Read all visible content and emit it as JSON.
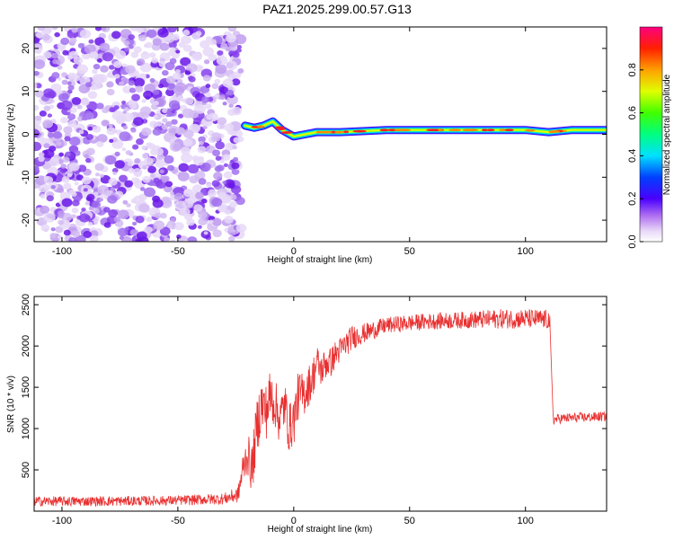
{
  "title": "PAZ1.2025.299.00.57.G13",
  "colors": {
    "snr_line": "#e83030",
    "axes": "#000000",
    "noise_light": "#d8c2f2",
    "noise_dark": "#7a1ee6"
  },
  "chart_data": [
    {
      "type": "heatmap",
      "xlabel": "Height of straight line (km)",
      "ylabel": "Frequency (Hz)",
      "xlim": [
        -112,
        135
      ],
      "ylim": [
        -25,
        25
      ],
      "x_ticks": [
        -100,
        -50,
        0,
        50,
        100
      ],
      "x_tick_labels": [
        "-100",
        "-50",
        "0",
        "50",
        "100"
      ],
      "y_ticks": [
        -20,
        -10,
        0,
        10,
        20
      ],
      "y_tick_labels": [
        "-20",
        "-10",
        "0",
        "10",
        "20"
      ],
      "noise_region_x": [
        -112,
        -21
      ],
      "signal_track": {
        "x": [
          -21,
          -17,
          -13,
          -9,
          -5,
          0,
          5,
          10,
          20,
          40,
          60,
          80,
          100,
          110,
          120,
          135
        ],
        "freq": [
          2,
          1.5,
          2,
          3,
          1,
          -0.5,
          0,
          0.5,
          0.5,
          1,
          1,
          1,
          1,
          0.5,
          1,
          1
        ]
      },
      "colorbar": {
        "label": "Normalized spectral amplitude",
        "range": [
          0,
          1
        ],
        "ticks": [
          0.0,
          0.2,
          0.4,
          0.6,
          0.8
        ],
        "tick_labels": [
          "0.0",
          "0.2",
          "0.4",
          "0.6",
          "0.8"
        ]
      }
    },
    {
      "type": "line",
      "xlabel": "Height of straight line (km)",
      "ylabel": "SNR (10 * v/v)",
      "xlim": [
        -112,
        135
      ],
      "ylim": [
        0,
        2600
      ],
      "x_ticks": [
        -100,
        -50,
        0,
        50,
        100
      ],
      "x_tick_labels": [
        "-100",
        "-50",
        "0",
        "50",
        "100"
      ],
      "y_ticks": [
        500,
        1000,
        1500,
        2000,
        2500
      ],
      "y_tick_labels": [
        "500",
        "1000",
        "1500",
        "2000",
        "2500"
      ],
      "series": [
        {
          "name": "SNR",
          "x": [
            -112,
            -80,
            -50,
            -30,
            -24,
            -22,
            -20,
            -18,
            -16,
            -14,
            -12,
            -10,
            -8,
            -6,
            -4,
            -2,
            0,
            2,
            4,
            6,
            8,
            10,
            12,
            14,
            16,
            18,
            20,
            25,
            30,
            35,
            40,
            50,
            60,
            70,
            80,
            90,
            100,
            110,
            111,
            112,
            114,
            120,
            130,
            135
          ],
          "values": [
            120,
            120,
            130,
            150,
            200,
            500,
            700,
            500,
            1000,
            1300,
            1200,
            1400,
            1300,
            1100,
            1300,
            1000,
            1100,
            1400,
            1400,
            1500,
            1600,
            1800,
            1700,
            1800,
            1800,
            1900,
            1950,
            2100,
            2150,
            2200,
            2250,
            2280,
            2300,
            2310,
            2320,
            2330,
            2330,
            2320,
            2200,
            1100,
            1120,
            1130,
            1140,
            1150
          ],
          "noise_amplitude": [
            60,
            60,
            60,
            70,
            100,
            200,
            250,
            300,
            350,
            350,
            350,
            350,
            300,
            300,
            300,
            300,
            300,
            300,
            280,
            250,
            250,
            220,
            200,
            200,
            180,
            170,
            160,
            150,
            120,
            110,
            100,
            100,
            100,
            100,
            110,
            120,
            120,
            120,
            100,
            60,
            60,
            60,
            60,
            60
          ]
        }
      ]
    }
  ]
}
